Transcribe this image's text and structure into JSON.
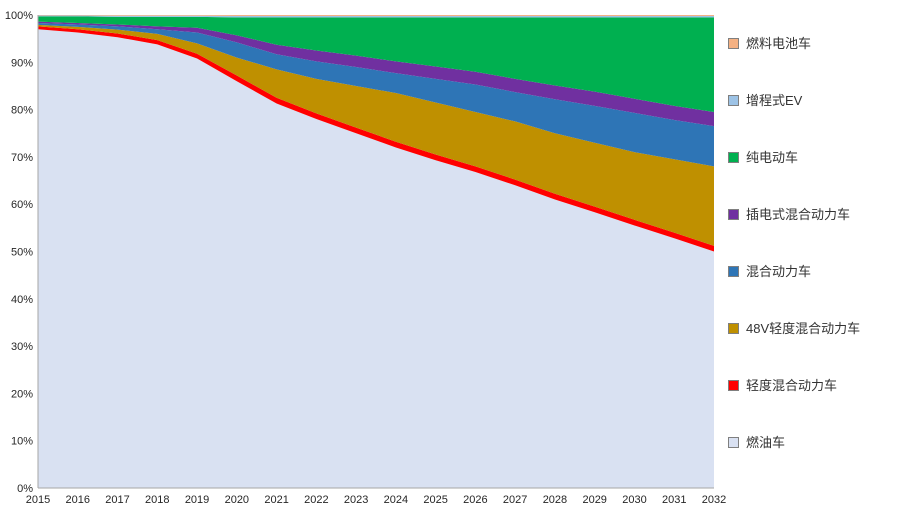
{
  "chart_data": {
    "type": "area",
    "stacked": true,
    "stacking": "percent",
    "title": "",
    "xlabel": "",
    "ylabel": "",
    "ylim": [
      0,
      100
    ],
    "grid": false,
    "legend_position": "right",
    "categories": [
      "2015",
      "2016",
      "2017",
      "2018",
      "2019",
      "2020",
      "2021",
      "2022",
      "2023",
      "2024",
      "2025",
      "2026",
      "2027",
      "2028",
      "2029",
      "2030",
      "2031",
      "2032"
    ],
    "yticks": [
      "0%",
      "10%",
      "20%",
      "30%",
      "40%",
      "50%",
      "60%",
      "70%",
      "80%",
      "90%",
      "100%"
    ],
    "series": [
      {
        "id": "fuel-vehicle",
        "name": "燃油车",
        "color": "#D9E1F2",
        "values": [
          97.0,
          96.3,
          95.3,
          93.8,
          90.8,
          86.0,
          81.3,
          78.0,
          75.0,
          72.0,
          69.3,
          66.8,
          64.0,
          61.0,
          58.3,
          55.5,
          52.8,
          50.0
        ]
      },
      {
        "id": "mild-hybrid",
        "name": "轻度混合动力车",
        "color": "#FF0000",
        "values": [
          0.6,
          0.7,
          0.8,
          0.9,
          1.0,
          1.2,
          1.2,
          1.2,
          1.2,
          1.2,
          1.2,
          1.2,
          1.2,
          1.2,
          1.2,
          1.2,
          1.2,
          1.2
        ]
      },
      {
        "id": "48v-mild-hybrid",
        "name": "48V轻度混合动力车",
        "color": "#BF9000",
        "values": [
          0.3,
          0.5,
          0.8,
          1.3,
          2.2,
          3.8,
          6.0,
          7.3,
          8.8,
          10.3,
          11.0,
          11.5,
          12.3,
          12.8,
          13.5,
          14.3,
          15.5,
          16.8
        ]
      },
      {
        "id": "hybrid",
        "name": "混合动力车",
        "color": "#2E75B6",
        "values": [
          0.4,
          0.5,
          0.7,
          1.0,
          2.3,
          3.2,
          3.2,
          3.7,
          4.0,
          4.2,
          5.0,
          5.8,
          6.2,
          7.2,
          7.8,
          8.3,
          8.3,
          8.5
        ]
      },
      {
        "id": "plug-in-hybrid",
        "name": "插电式混合动力车",
        "color": "#7030A0",
        "values": [
          0.3,
          0.3,
          0.4,
          0.6,
          1.0,
          1.5,
          2.0,
          2.3,
          2.4,
          2.5,
          2.6,
          2.7,
          2.8,
          2.9,
          3.0,
          3.0,
          3.0,
          3.0
        ]
      },
      {
        "id": "battery-ev",
        "name": "纯电动车",
        "color": "#00B050",
        "values": [
          1.1,
          1.4,
          1.6,
          2.0,
          2.3,
          3.8,
          5.8,
          7.0,
          8.1,
          9.3,
          10.4,
          11.5,
          13.0,
          14.4,
          15.7,
          17.2,
          18.7,
          20.0
        ]
      },
      {
        "id": "extended-range-ev",
        "name": "增程式EV",
        "color": "#9DC3E6",
        "values": [
          0.2,
          0.2,
          0.25,
          0.25,
          0.25,
          0.3,
          0.3,
          0.3,
          0.3,
          0.3,
          0.3,
          0.3,
          0.3,
          0.3,
          0.3,
          0.3,
          0.3,
          0.3
        ]
      },
      {
        "id": "fuel-cell",
        "name": "燃料电池车",
        "color": "#F4B183",
        "values": [
          0.1,
          0.1,
          0.15,
          0.15,
          0.15,
          0.2,
          0.2,
          0.2,
          0.2,
          0.2,
          0.2,
          0.2,
          0.2,
          0.2,
          0.2,
          0.2,
          0.2,
          0.2
        ]
      }
    ]
  }
}
